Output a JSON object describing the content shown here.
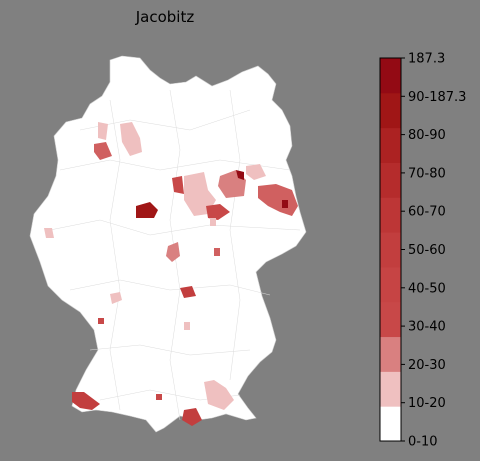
{
  "title": "Jacobitz",
  "colorbar": {
    "labels": [
      "0-10",
      "10-20",
      "20-30",
      "30-40",
      "40-50",
      "50-60",
      "60-70",
      "70-80",
      "80-90",
      "90-187.3",
      "187.3"
    ],
    "bins": [
      {
        "label": "0-10",
        "color": "#ffffff"
      },
      {
        "label": "10-20",
        "color": "#efc0c0"
      },
      {
        "label": "20-30",
        "color": "#d98080"
      },
      {
        "label": "30-40",
        "color": "#c84848"
      },
      {
        "label": "40-50",
        "color": "#c64444"
      },
      {
        "label": "50-60",
        "color": "#c23e3e"
      },
      {
        "label": "60-70",
        "color": "#bd3636"
      },
      {
        "label": "70-80",
        "color": "#b52c2c"
      },
      {
        "label": "80-90",
        "color": "#ac2222"
      },
      {
        "label": "90-187.3",
        "color": "#a01616"
      },
      {
        "label": "187.3",
        "color": "#930a14"
      }
    ]
  },
  "map": {
    "base_color": "#ffffff",
    "border_color": "#d8d8d8"
  }
}
